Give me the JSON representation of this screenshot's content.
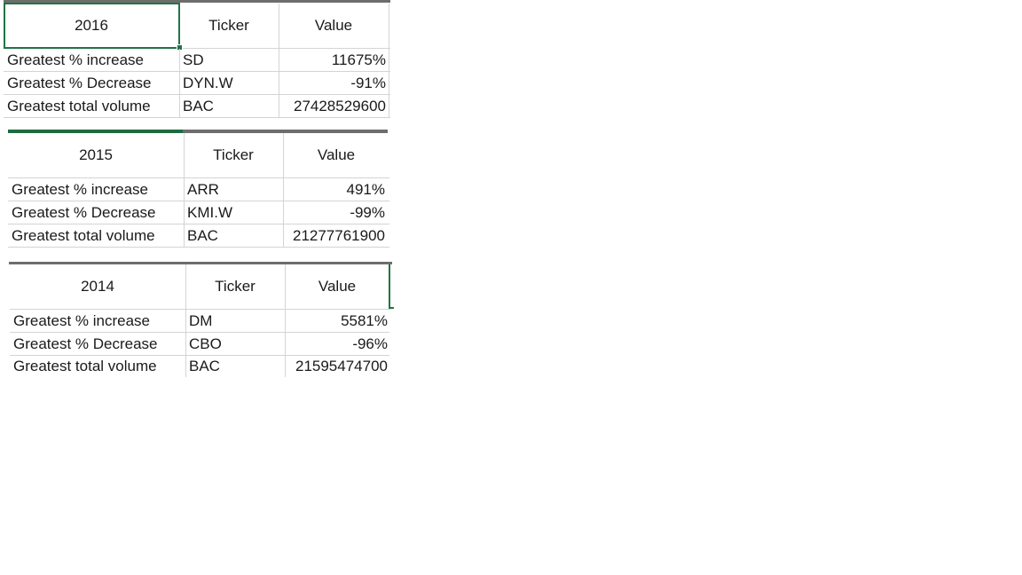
{
  "tables": [
    {
      "year": "2016",
      "headers": [
        "Ticker",
        "Value"
      ],
      "rows": [
        {
          "label": "Greatest % increase",
          "ticker": "SD",
          "value": "11675%"
        },
        {
          "label": "Greatest % Decrease",
          "ticker": "DYN.W",
          "value": "-91%"
        },
        {
          "label": "Greatest total volume",
          "ticker": "BAC",
          "value": "27428529600"
        }
      ]
    },
    {
      "year": "2015",
      "headers": [
        "Ticker",
        "Value"
      ],
      "rows": [
        {
          "label": "Greatest % increase",
          "ticker": "ARR",
          "value": "491%"
        },
        {
          "label": "Greatest % Decrease",
          "ticker": "KMI.W",
          "value": "-99%"
        },
        {
          "label": "Greatest total volume",
          "ticker": "BAC",
          "value": "21277761900"
        }
      ]
    },
    {
      "year": "2014",
      "headers": [
        "Ticker",
        "Value"
      ],
      "rows": [
        {
          "label": "Greatest % increase",
          "ticker": "DM",
          "value": "5581%"
        },
        {
          "label": "Greatest % Decrease",
          "ticker": "CBO",
          "value": "-96%"
        },
        {
          "label": "Greatest total volume",
          "ticker": "BAC",
          "value": "21595474700"
        }
      ]
    }
  ],
  "colors": {
    "selection": "#217346",
    "gridline": "#d4d4d4",
    "top_bar_gray": "#6d6d6d",
    "top_bar_green": "#1d6b3f"
  }
}
